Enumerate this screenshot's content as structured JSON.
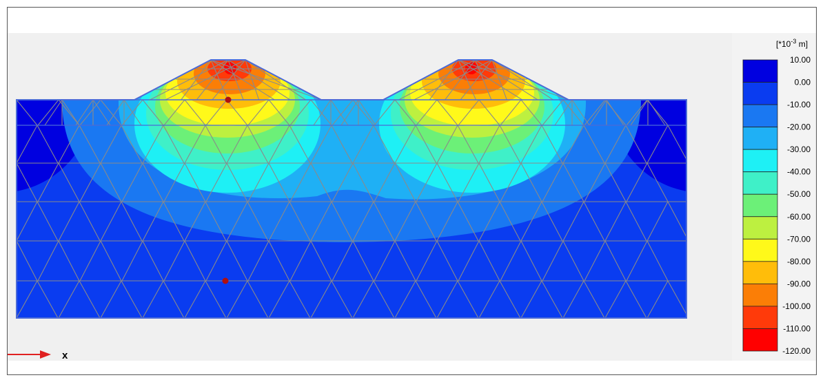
{
  "legend": {
    "unit_prefix": "[*10",
    "unit_exponent": "-3",
    "unit_suffix": " m]",
    "ticks": [
      "10.00",
      "0.00",
      "-10.00",
      "-20.00",
      "-30.00",
      "-40.00",
      "-50.00",
      "-60.00",
      "-70.00",
      "-80.00",
      "-90.00",
      "-100.00",
      "-110.00",
      "-120.00"
    ],
    "colors": [
      "#0000e0",
      "#0a3cf0",
      "#1a78f2",
      "#1fb0f5",
      "#1ef0f5",
      "#3ff0c8",
      "#6cf078",
      "#bdf040",
      "#fff91a",
      "#ffbd0a",
      "#fb7e06",
      "#ff3a0a",
      "#ff0000"
    ]
  },
  "axis": {
    "x_label": "x",
    "arrow_color": "#e02020"
  },
  "model": {
    "mesh_color": "#8a8a8a",
    "outline_color": "#4a6ad8",
    "point_color": "#b01010"
  }
}
